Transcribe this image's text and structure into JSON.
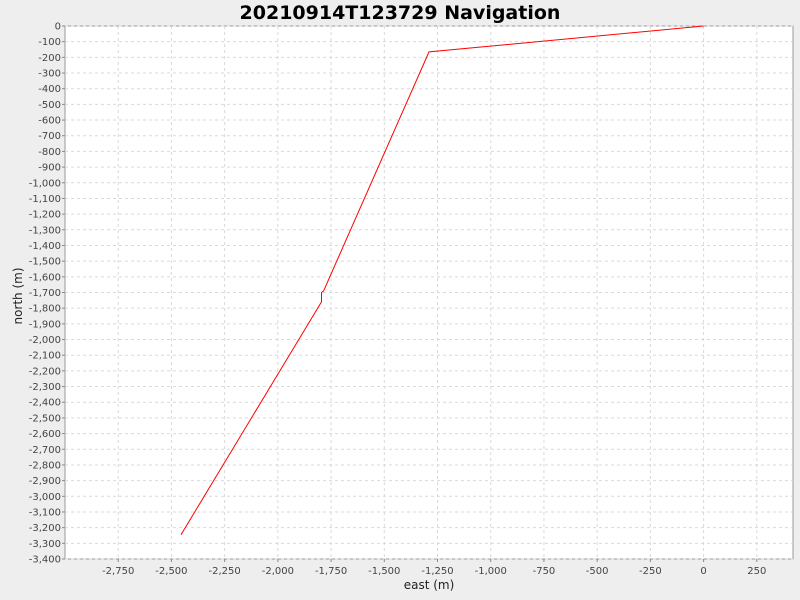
{
  "chart_data": {
    "type": "line",
    "title": "20210914T123729 Navigation",
    "xlabel": "east (m)",
    "ylabel": "north (m)",
    "xlim": [
      -3000,
      420
    ],
    "ylim": [
      -3400,
      0
    ],
    "x_ticks": [
      -2750,
      -2500,
      -2250,
      -2000,
      -1750,
      -1500,
      -1250,
      -1000,
      -750,
      -500,
      -250,
      0,
      250
    ],
    "x_tick_labels": [
      "-2,750",
      "-2,500",
      "-2,250",
      "-2,000",
      "-1,750",
      "-1,500",
      "-1,250",
      "-1,000",
      "-750",
      "-500",
      "-250",
      "0",
      "250"
    ],
    "y_ticks": [
      0,
      -100,
      -200,
      -300,
      -400,
      -500,
      -600,
      -700,
      -800,
      -900,
      -1000,
      -1100,
      -1200,
      -1300,
      -1400,
      -1500,
      -1600,
      -1700,
      -1800,
      -1900,
      -2000,
      -2100,
      -2200,
      -2300,
      -2400,
      -2500,
      -2600,
      -2700,
      -2800,
      -2900,
      -3000,
      -3100,
      -3200,
      -3300,
      -3400
    ],
    "y_tick_labels": [
      "0",
      "-100",
      "-200",
      "-300",
      "-400",
      "-500",
      "-600",
      "-700",
      "-800",
      "-900",
      "-1,000",
      "-1,100",
      "-1,200",
      "-1,300",
      "-1,400",
      "-1,500",
      "-1,600",
      "-1,700",
      "-1,800",
      "-1,900",
      "-2,000",
      "-2,100",
      "-2,200",
      "-2,300",
      "-2,400",
      "-2,500",
      "-2,600",
      "-2,700",
      "-2,800",
      "-2,900",
      "-3,000",
      "-3,100",
      "-3,200",
      "-3,300",
      "-3,400"
    ],
    "grid": true,
    "series": [
      {
        "color": "#ff0000",
        "x": [
          0,
          -1290,
          -1785,
          -1795,
          -1795,
          -2455
        ],
        "y": [
          0,
          -165,
          -1690,
          -1700,
          -1760,
          -3245
        ]
      }
    ]
  }
}
